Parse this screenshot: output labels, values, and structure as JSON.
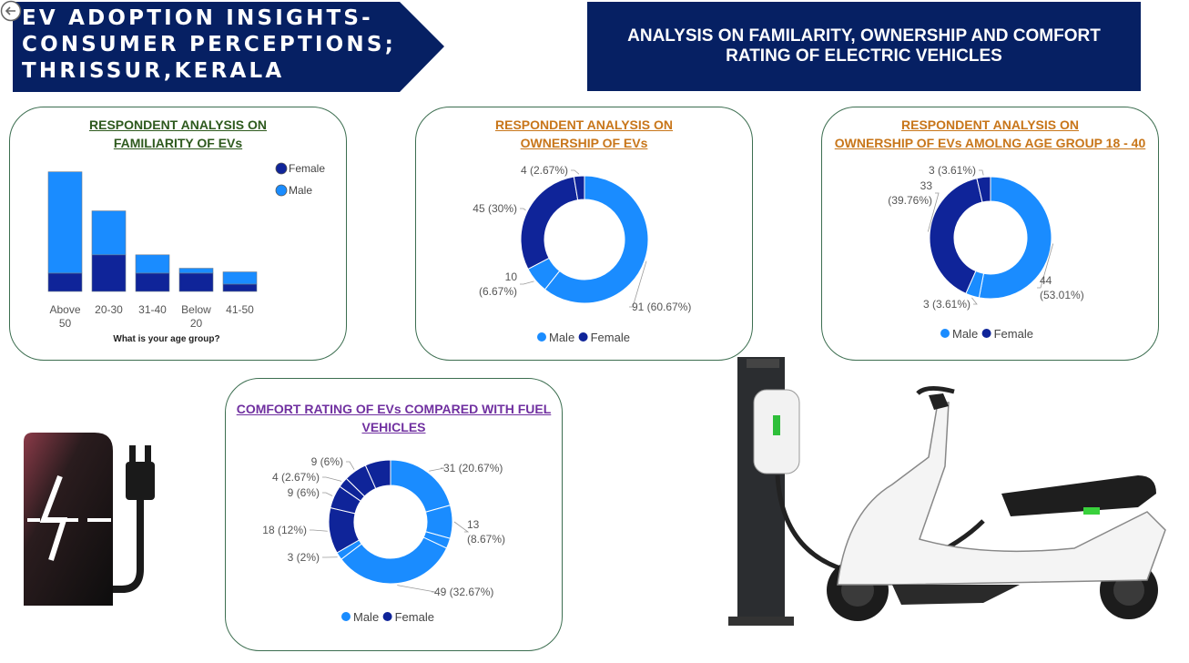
{
  "header": {
    "title_lines": [
      "EV ADOPTION INSIGHTS-",
      "CONSUMER PERCEPTIONS;",
      "THRISSUR,KERALA"
    ],
    "subtitle_lines": [
      "ANALYSIS ON FAMILARITY, OWNERSHIP AND COMFORT",
      "RATING OF ELECTRIC VEHICLES"
    ],
    "banner_color": "#062063"
  },
  "colors": {
    "male": "#1a8cff",
    "female": "#0f2499",
    "familiarity_title": "#2e5a1e",
    "ownership_title": "#c8761a",
    "comfort_title": "#7030a0"
  },
  "chart_data": [
    {
      "type": "bar",
      "stacked": true,
      "title_lines": [
        "RESPONDENT ANALYSIS ON",
        "FAMILIARITY OF EVs"
      ],
      "categories": [
        "Above 50",
        "20-30",
        "31-40",
        "Below 20",
        "41-50"
      ],
      "category_lines": [
        [
          "Above",
          "50"
        ],
        [
          "20-30"
        ],
        [
          "31-40"
        ],
        [
          "Below",
          "20"
        ],
        [
          "41-50"
        ]
      ],
      "series": [
        {
          "name": "Female",
          "values": [
            15,
            30,
            15,
            15,
            6
          ]
        },
        {
          "name": "Male",
          "values": [
            83,
            36,
            15,
            4,
            10
          ]
        }
      ],
      "legend": [
        "Female",
        "Male"
      ],
      "xlabel": "What is your age group?",
      "ylim": [
        0,
        100
      ]
    },
    {
      "type": "pie",
      "donut": true,
      "title_lines": [
        "RESPONDENT ANALYSIS ON",
        "OWNERSHIP OF EVs"
      ],
      "slices": [
        {
          "series": "Male",
          "value": 91,
          "label_lines": [
            "91 (60.67%)"
          ]
        },
        {
          "series": "Male",
          "value": 10,
          "label_lines": [
            "10",
            "(6.67%)"
          ]
        },
        {
          "series": "Female",
          "value": 45,
          "label_lines": [
            "45 (30%)"
          ]
        },
        {
          "series": "Female",
          "value": 4,
          "label_lines": [
            "4 (2.67%)"
          ]
        }
      ],
      "legend": [
        "Male",
        "Female"
      ]
    },
    {
      "type": "pie",
      "donut": true,
      "title_lines": [
        "RESPONDENT ANALYSIS ON",
        "OWNERSHIP OF EVs AMOLNG AGE GROUP 18 - 40"
      ],
      "slices": [
        {
          "series": "Male",
          "value": 44,
          "label_lines": [
            "44",
            "(53.01%)"
          ]
        },
        {
          "series": "Male",
          "value": 3,
          "label_lines": [
            "3 (3.61%)"
          ]
        },
        {
          "series": "Female",
          "value": 33,
          "label_lines": [
            "33",
            "(39.76%)"
          ]
        },
        {
          "series": "Female",
          "value": 3,
          "label_lines": [
            "3 (3.61%)"
          ]
        }
      ],
      "legend": [
        "Male",
        "Female"
      ]
    },
    {
      "type": "pie",
      "donut": true,
      "title_lines": [
        "COMFORT RATING OF EVs COMPARED WITH FUEL",
        "VEHICLES"
      ],
      "slices": [
        {
          "series": "Male",
          "value": 31,
          "label_lines": [
            "31 (20.67%)"
          ]
        },
        {
          "series": "Male",
          "value": 13,
          "label_lines": [
            "13",
            "(8.67%)"
          ]
        },
        {
          "series": "Male",
          "value": 4,
          "label_lines": []
        },
        {
          "series": "Male",
          "value": 49,
          "label_lines": [
            "49 (32.67%)"
          ]
        },
        {
          "series": "Male",
          "value": 3,
          "label_lines": [
            "3 (2%)"
          ]
        },
        {
          "series": "Female",
          "value": 18,
          "label_lines": [
            "18 (12%)"
          ]
        },
        {
          "series": "Female",
          "value": 9,
          "label_lines": [
            "9 (6%)"
          ]
        },
        {
          "series": "Female",
          "value": 4,
          "label_lines": [
            "4 (2.67%)"
          ]
        },
        {
          "series": "Female",
          "value": 9,
          "label_lines": [
            "9 (6%)"
          ]
        },
        {
          "series": "Female",
          "value": 10,
          "label_lines": []
        }
      ],
      "legend": [
        "Male",
        "Female"
      ]
    }
  ]
}
